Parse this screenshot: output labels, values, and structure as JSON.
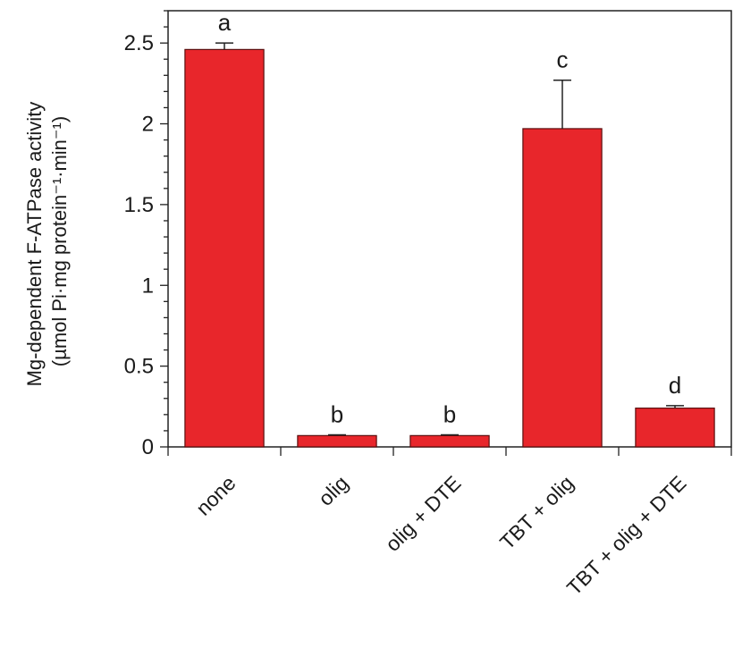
{
  "chart_data": {
    "type": "bar",
    "title": "",
    "ylabel_line1": "Mg-dependent F-ATPase activity",
    "ylabel_line2": "(µmol Pi·mg protein⁻¹·min⁻¹)",
    "xlabel": "",
    "categories": [
      "none",
      "olig",
      "olig + DTE",
      "TBT + olig",
      "TBT + olig + DTE"
    ],
    "values": [
      2.46,
      0.07,
      0.07,
      1.97,
      0.24
    ],
    "errors": [
      0.04,
      0.005,
      0.005,
      0.3,
      0.015
    ],
    "significance_letters": [
      "a",
      "b",
      "b",
      "c",
      "d"
    ],
    "yticks": [
      "0",
      "0.5",
      "1",
      "1.5",
      "2",
      "2.5"
    ],
    "ytick_values": [
      0,
      0.5,
      1,
      1.5,
      2,
      2.5
    ],
    "ylim": [
      0,
      2.7
    ],
    "grid": false,
    "legend": "none",
    "colors": {
      "bar": "#e8262b",
      "bar_edge": "#5a0d0d",
      "axis": "#222222"
    }
  }
}
